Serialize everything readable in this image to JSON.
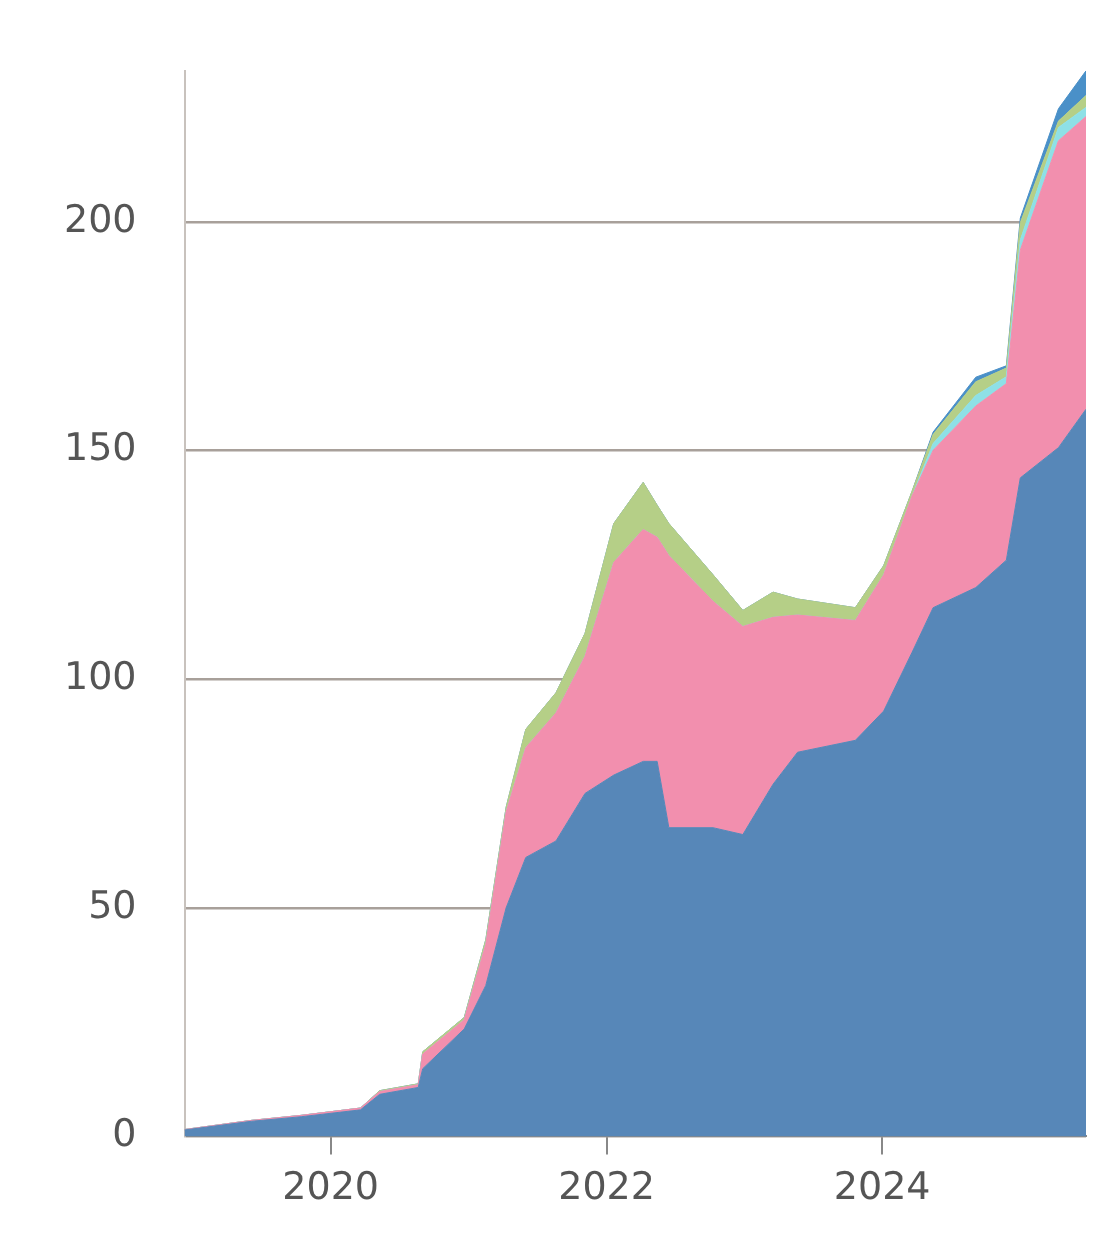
{
  "chart_data": {
    "type": "area",
    "stacked": true,
    "grid": "y",
    "legend": false,
    "x": [
      "2018-12-10",
      "2019-06-05",
      "2019-10-15",
      "2020-03-20",
      "2020-05-10",
      "2020-08-20",
      "2020-09-01",
      "2020-12-20",
      "2021-02-15",
      "2021-04-10",
      "2021-06-01",
      "2021-08-20",
      "2021-11-05",
      "2022-01-20",
      "2022-04-08",
      "2022-05-15",
      "2022-06-15",
      "2022-10-10",
      "2022-12-28",
      "2023-03-18",
      "2023-05-22",
      "2023-10-22",
      "2024-01-05",
      "2024-03-20",
      "2024-05-15",
      "2024-09-05",
      "2024-11-25",
      "2025-01-01",
      "2025-04-12",
      "2025-06-24"
    ],
    "xlim": [
      "2018-12-10",
      "2025-06-24"
    ],
    "xticks": [
      "2020",
      "2022",
      "2024"
    ],
    "ylim": [
      0,
      233
    ],
    "yticks": [
      0,
      50,
      100,
      150,
      200
    ],
    "series": [
      {
        "color": "#5787b8",
        "values": [
          1.4,
          3.3,
          4.3,
          5.8,
          9.2,
          10.7,
          14.8,
          23.5,
          33,
          50,
          61,
          64.6,
          75,
          79,
          82,
          82,
          67.5,
          67.5,
          66,
          77,
          84,
          86.6,
          93,
          105.8,
          115.6,
          120,
          126,
          144,
          150.6,
          159
        ]
      },
      {
        "color": "#f28fae",
        "values": [
          0.1,
          0.2,
          0.3,
          0.4,
          0.6,
          0.6,
          3.2,
          2,
          9,
          21,
          24,
          28,
          30,
          46.5,
          50.7,
          49,
          59.5,
          49.5,
          45.5,
          36.5,
          30,
          26.2,
          29.8,
          34.2,
          34.4,
          39.7,
          38.6,
          49.8,
          67.1,
          64
        ]
      },
      {
        "color": "#8ee0e6",
        "values": [
          0,
          0,
          0,
          0,
          0,
          0,
          0,
          0,
          0,
          0,
          0,
          0,
          0,
          0,
          0,
          0,
          0,
          0,
          0,
          0,
          0,
          0,
          0,
          0,
          1.5,
          2.3,
          1.5,
          2.2,
          2.9,
          2
        ]
      },
      {
        "color": "#b5cf87",
        "values": [
          0,
          0,
          0,
          0,
          0.2,
          0.2,
          0.5,
          0.5,
          1,
          1,
          4,
          4.4,
          5,
          8.5,
          10.3,
          7,
          7,
          5.8,
          3.5,
          5.5,
          3.5,
          2.8,
          2,
          1,
          2,
          3,
          1.9,
          3.8,
          1.4,
          2.6
        ]
      },
      {
        "color": "#4a90c8",
        "values": [
          0,
          0,
          0,
          0,
          0,
          0,
          0,
          0,
          0,
          0,
          0,
          0,
          0,
          0,
          0,
          0,
          0,
          0,
          0,
          0,
          0,
          0,
          0,
          0,
          0.5,
          1,
          0.5,
          1,
          2.7,
          5.4
        ]
      }
    ]
  }
}
